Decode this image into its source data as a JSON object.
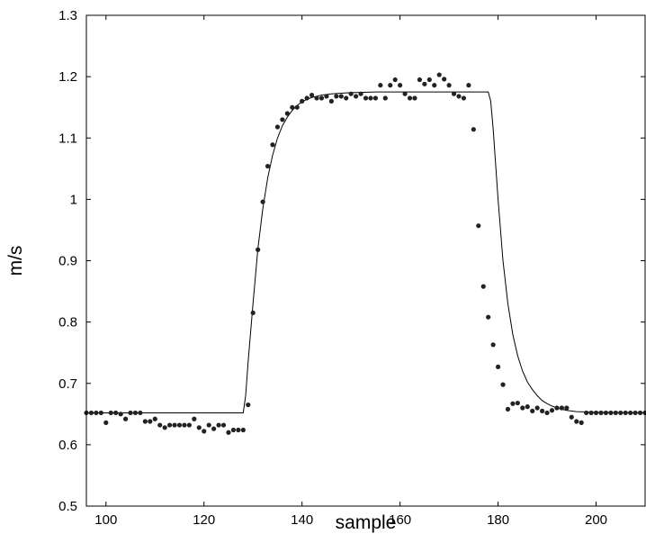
{
  "chart_data": {
    "type": "scatter",
    "title": "",
    "xlabel": "sample",
    "ylabel": "m/s",
    "xlim": [
      96,
      210
    ],
    "ylim": [
      0.5,
      1.3
    ],
    "xticks": [
      100,
      120,
      140,
      160,
      180,
      200
    ],
    "xtick_labels": [
      "100",
      "120",
      "140",
      "160",
      "180",
      "200"
    ],
    "yticks": [
      0.5,
      0.6,
      0.7,
      0.8,
      0.9,
      1.0,
      1.1,
      1.2,
      1.3
    ],
    "ytick_labels": [
      "0.5",
      "0.6",
      "0.7",
      "0.8",
      "0.9",
      "1",
      "1.1",
      "1.2",
      "1.3"
    ],
    "grid": false,
    "legend": "none",
    "colors": {
      "points": "#222222",
      "line": "#000000",
      "axes": "#000000"
    },
    "series": [
      {
        "kind": "points",
        "x": [
          96,
          97,
          98,
          99,
          100,
          101,
          102,
          103,
          104,
          105,
          106,
          107,
          108,
          109,
          110,
          111,
          112,
          113,
          114,
          115,
          116,
          117,
          118,
          119,
          120,
          121,
          122,
          123,
          124,
          125,
          126,
          127,
          128,
          129,
          130,
          131,
          132,
          133,
          134,
          135,
          136,
          137,
          138,
          139,
          140,
          141,
          142,
          143,
          144,
          145,
          146,
          147,
          148,
          149,
          150,
          151,
          152,
          153,
          154,
          155,
          156,
          157,
          158,
          159,
          160,
          161,
          162,
          163,
          164,
          165,
          166,
          167,
          168,
          169,
          170,
          171,
          172,
          173,
          174,
          175,
          176,
          177,
          178,
          179,
          180,
          181,
          182,
          183,
          184,
          185,
          186,
          187,
          188,
          189,
          190,
          191,
          192,
          193,
          194,
          195,
          196,
          197,
          198,
          199,
          200,
          201,
          202,
          203,
          204,
          205,
          206,
          207,
          208,
          209,
          210
        ],
        "y": [
          0.652,
          0.652,
          0.652,
          0.652,
          0.636,
          0.652,
          0.652,
          0.65,
          0.642,
          0.652,
          0.652,
          0.652,
          0.638,
          0.638,
          0.642,
          0.632,
          0.628,
          0.632,
          0.632,
          0.632,
          0.632,
          0.632,
          0.642,
          0.628,
          0.622,
          0.632,
          0.626,
          0.632,
          0.632,
          0.62,
          0.624,
          0.624,
          0.624,
          0.665,
          0.815,
          0.918,
          0.996,
          1.054,
          1.089,
          1.118,
          1.13,
          1.14,
          1.15,
          1.15,
          1.16,
          1.165,
          1.17,
          1.165,
          1.165,
          1.168,
          1.16,
          1.168,
          1.168,
          1.165,
          1.172,
          1.168,
          1.172,
          1.165,
          1.165,
          1.165,
          1.186,
          1.165,
          1.186,
          1.195,
          1.186,
          1.172,
          1.165,
          1.165,
          1.195,
          1.188,
          1.195,
          1.186,
          1.203,
          1.196,
          1.186,
          1.172,
          1.168,
          1.165,
          1.186,
          1.114,
          0.957,
          0.858,
          0.808,
          0.763,
          0.727,
          0.698,
          0.658,
          0.667,
          0.668,
          0.66,
          0.662,
          0.655,
          0.66,
          0.655,
          0.652,
          0.656,
          0.66,
          0.66,
          0.66,
          0.645,
          0.638,
          0.636,
          0.652,
          0.652,
          0.652,
          0.652,
          0.652,
          0.652,
          0.652,
          0.652,
          0.652,
          0.652,
          0.652,
          0.652,
          0.652
        ]
      },
      {
        "kind": "line",
        "x": [
          96,
          128,
          128.5,
          129,
          130,
          131,
          132,
          133,
          134,
          135,
          136,
          137,
          138,
          139,
          140,
          141,
          142,
          143,
          144,
          146,
          148,
          150,
          155,
          160,
          170,
          178,
          178.5,
          179,
          180,
          181,
          182,
          183,
          184,
          185,
          186,
          187,
          188,
          189,
          190,
          191,
          192,
          194,
          196,
          200,
          210
        ],
        "y": [
          0.652,
          0.652,
          0.68,
          0.735,
          0.83,
          0.92,
          0.985,
          1.035,
          1.072,
          1.1,
          1.12,
          1.134,
          1.145,
          1.153,
          1.159,
          1.163,
          1.166,
          1.168,
          1.17,
          1.172,
          1.173,
          1.174,
          1.175,
          1.175,
          1.175,
          1.175,
          1.16,
          1.115,
          1.0,
          0.9,
          0.83,
          0.78,
          0.745,
          0.72,
          0.702,
          0.69,
          0.68,
          0.672,
          0.667,
          0.663,
          0.66,
          0.656,
          0.654,
          0.653,
          0.652
        ]
      }
    ]
  }
}
